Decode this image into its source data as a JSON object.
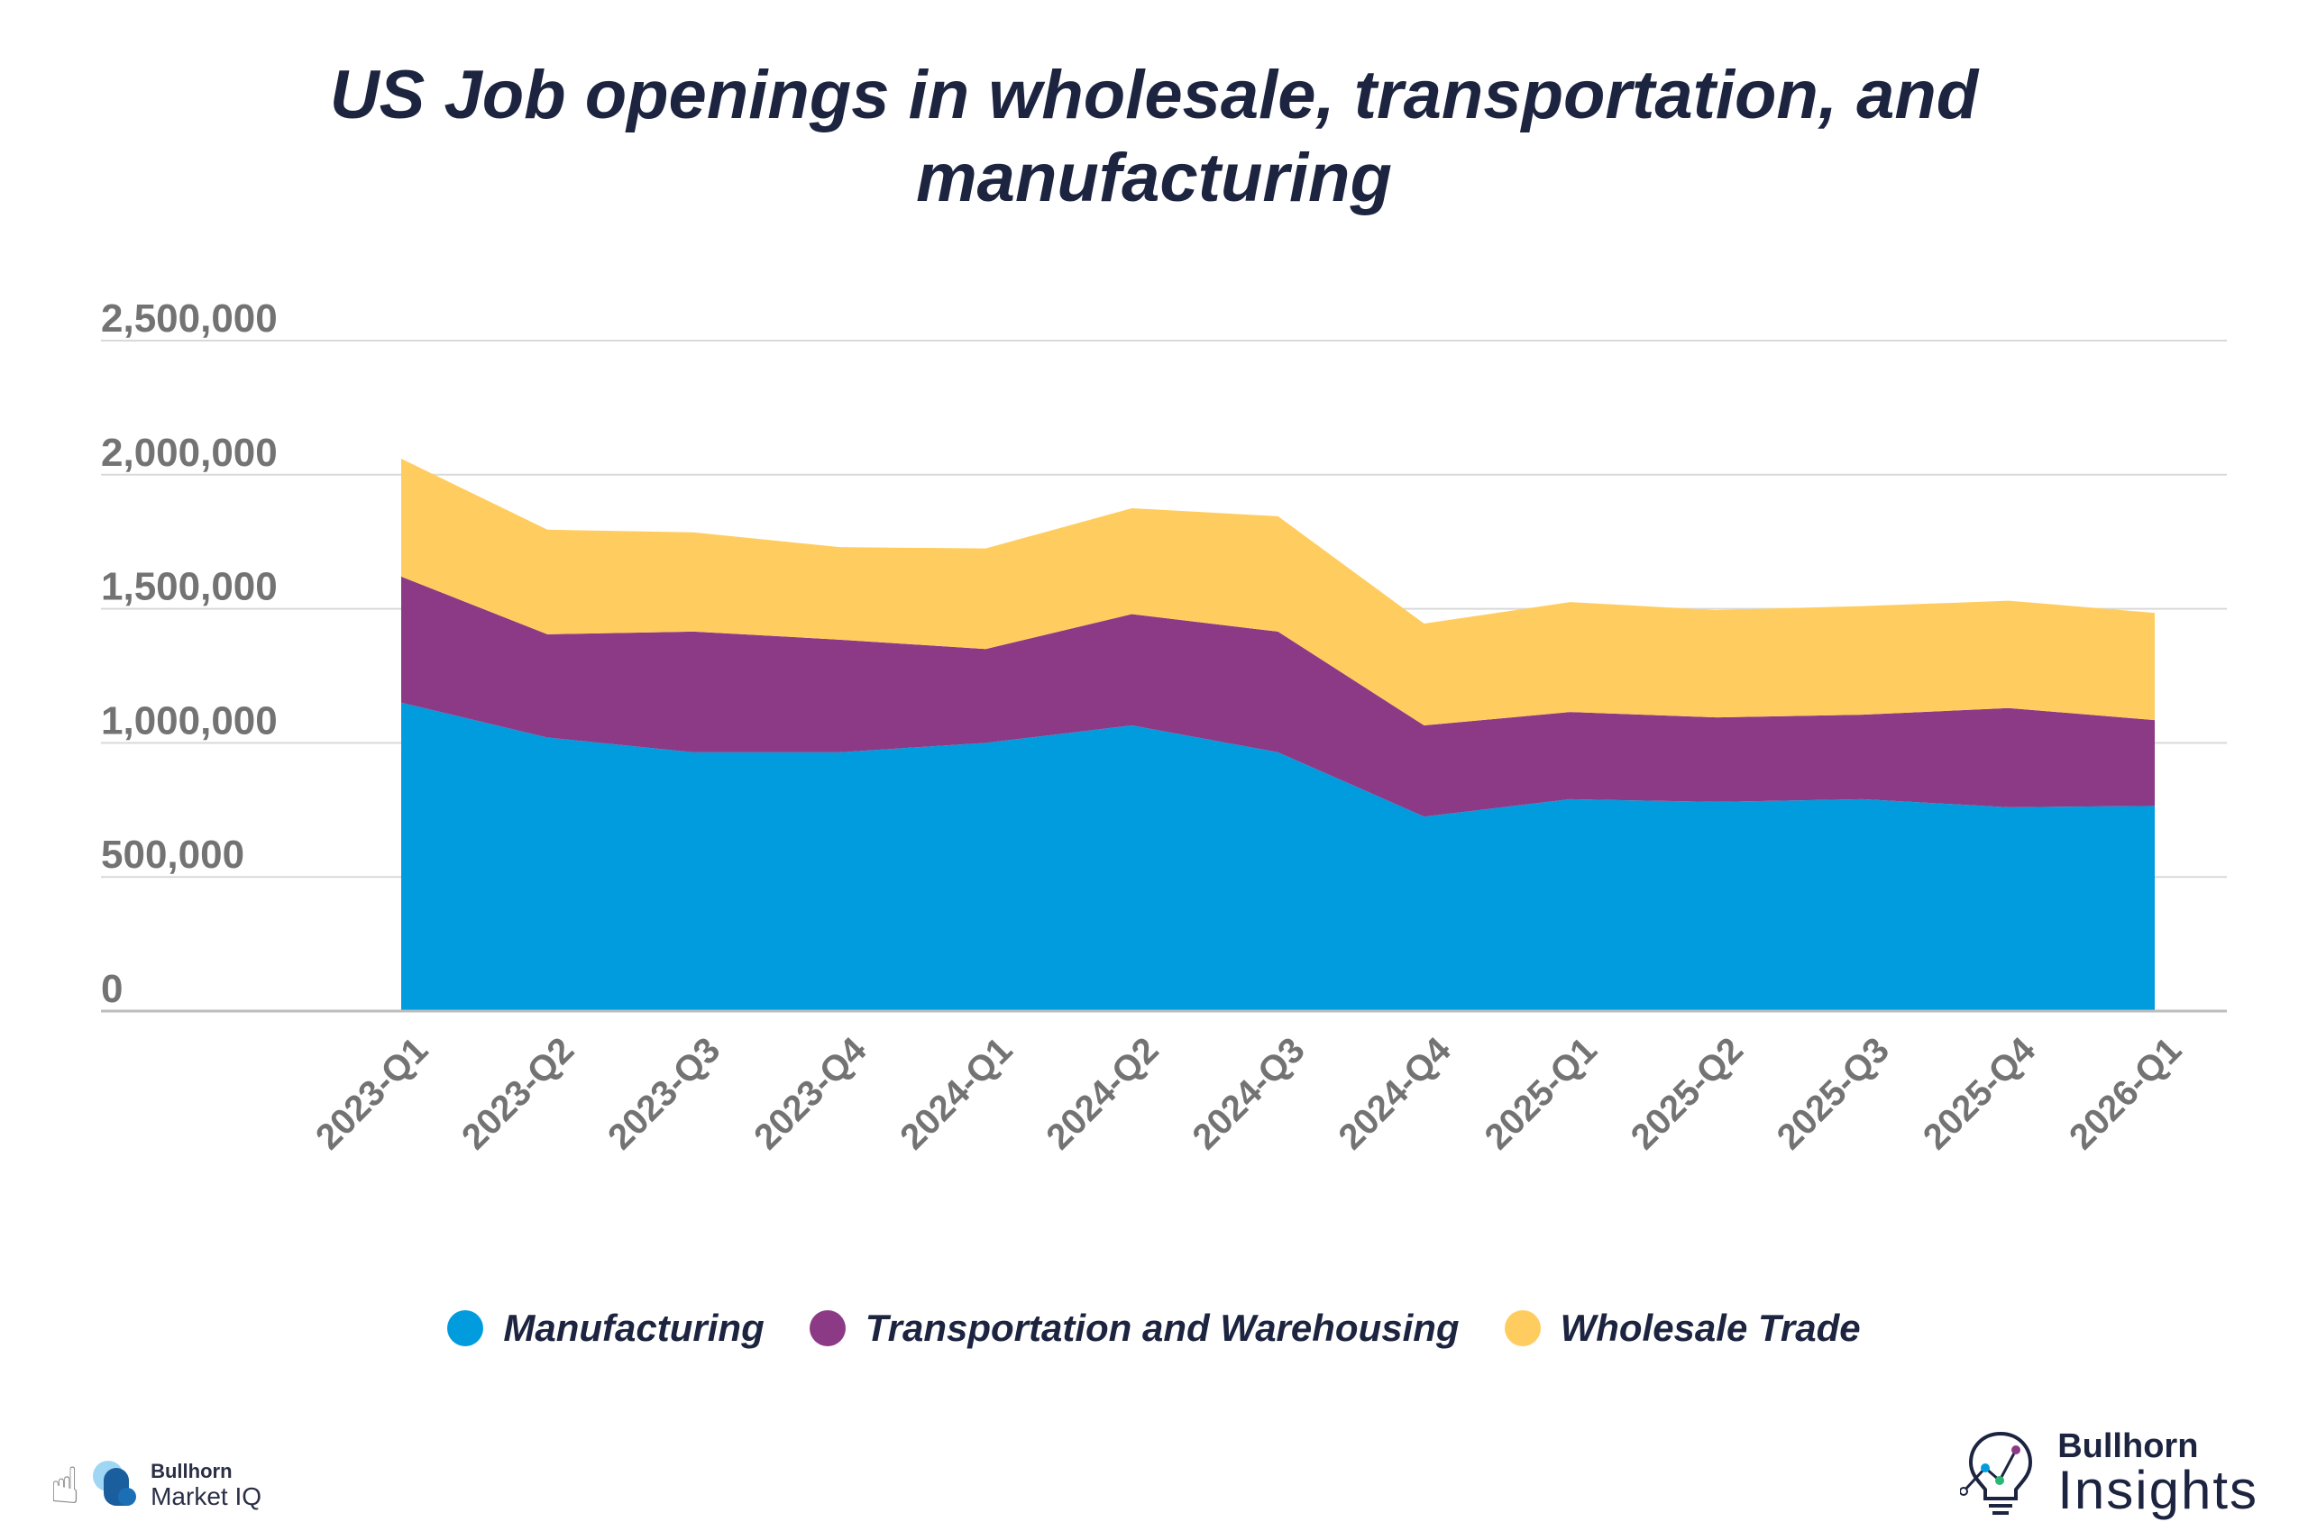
{
  "chart_data": {
    "type": "area",
    "stacked": true,
    "title": "US Job openings in wholesale, transportation, and manufacturing",
    "xlabel": "",
    "ylabel": "",
    "ylim": [
      0,
      2500000
    ],
    "yticks": [
      0,
      500000,
      1000000,
      1500000,
      2000000,
      2500000
    ],
    "ytick_labels": [
      "0",
      "500,000",
      "1,000,000",
      "1,500,000",
      "2,000,000",
      "2,500,000"
    ],
    "grid": true,
    "legend_position": "bottom",
    "categories": [
      "2023-Q1",
      "2023-Q2",
      "2023-Q3",
      "2023-Q4",
      "2024-Q1",
      "2024-Q2",
      "2024-Q3",
      "2024-Q4",
      "2025-Q1",
      "2025-Q2",
      "2025-Q3",
      "2025-Q4",
      "2026-Q1"
    ],
    "series": [
      {
        "name": "Manufacturing",
        "color": "#009cde",
        "values": [
          1150000,
          1020000,
          965000,
          965000,
          1000000,
          1065000,
          965000,
          725000,
          790000,
          780000,
          790000,
          760000,
          765000
        ]
      },
      {
        "name": "Transportation and Warehousing",
        "color": "#8d3a86",
        "values": [
          470000,
          385000,
          450000,
          420000,
          350000,
          415000,
          450000,
          340000,
          325000,
          315000,
          315000,
          370000,
          320000
        ]
      },
      {
        "name": "Wholesale Trade",
        "color": "#ffcd5f",
        "values": [
          440000,
          390000,
          370000,
          345000,
          375000,
          395000,
          430000,
          380000,
          410000,
          400000,
          405000,
          400000,
          400000
        ]
      }
    ]
  },
  "logos": {
    "left_line1": "Bullhorn",
    "left_line2": "Market IQ",
    "left_icon": "hand-pointer-icon",
    "right_line1": "Bullhorn",
    "right_line2": "Insights",
    "right_icon": "lightbulb-icon"
  }
}
